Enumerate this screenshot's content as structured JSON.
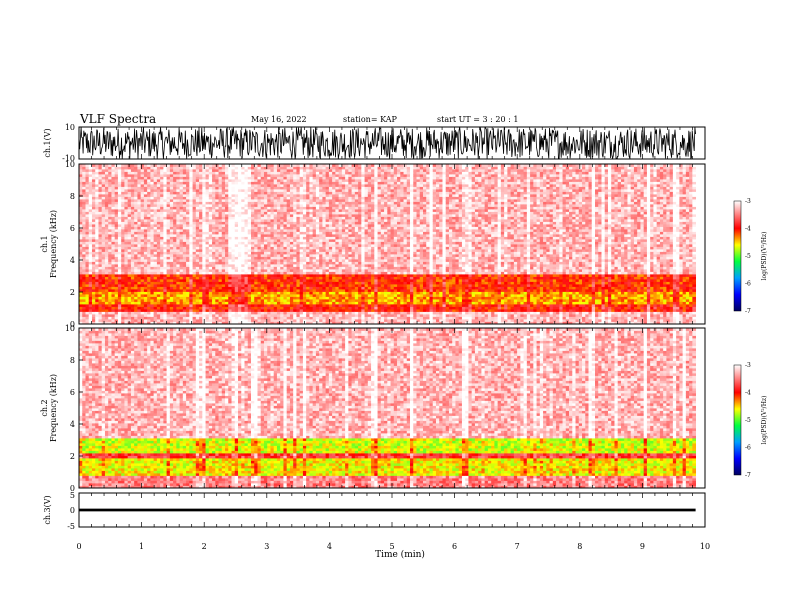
{
  "header": {
    "title": "VLF Spectra",
    "date": "May 16, 2022",
    "station": "station= KAP",
    "start_ut": "start  UT  =   3  : 20 : 1"
  },
  "chart_data": [
    {
      "type": "line",
      "panel": "ch1-waveform",
      "ylabel": "ch.1(V)",
      "ylim": [
        -10,
        10
      ],
      "yticks": [
        "10",
        "-10"
      ],
      "x_range_min": [
        0,
        9.85
      ],
      "description_of_values": "dense noise signal spanning full range",
      "amplitude_range": [
        -10,
        10
      ],
      "color": "#000000"
    },
    {
      "type": "heatmap",
      "panel": "ch1-spectrogram",
      "ylabel_top": "ch.1",
      "ylabel": "Frequency (kHz)",
      "ylim": [
        0,
        10
      ],
      "yticks": [
        "0",
        "2",
        "4",
        "6",
        "8",
        "10"
      ],
      "x_range_min": [
        0,
        9.85
      ],
      "bands_kHz": [
        {
          "from": 0,
          "to": 0.8,
          "level": -3.3
        },
        {
          "from": 0.8,
          "to": 1.2,
          "level": -4.0
        },
        {
          "from": 1.2,
          "to": 2.0,
          "level": -4.4
        },
        {
          "from": 2.0,
          "to": 3.2,
          "level": -4.1
        },
        {
          "from": 3.2,
          "to": 10,
          "level": -3.3
        }
      ],
      "colorbar": {
        "label": "log(PSD)(V²/Hz)",
        "ticks": [
          "-3",
          "-4",
          "-5",
          "-6",
          "-7"
        ],
        "range": [
          -7,
          -3
        ]
      }
    },
    {
      "type": "heatmap",
      "panel": "ch2-spectrogram",
      "ylabel_top": "ch.2",
      "ylabel": "Frequency (kHz)",
      "ylim": [
        0,
        10
      ],
      "yticks": [
        "0",
        "2",
        "4",
        "6",
        "8",
        "10"
      ],
      "x_range_min": [
        0,
        9.85
      ],
      "bands_kHz": [
        {
          "from": 0,
          "to": 0.8,
          "level": -3.5
        },
        {
          "from": 0.8,
          "to": 1.8,
          "level": -4.6
        },
        {
          "from": 1.8,
          "to": 2.2,
          "level": -3.8
        },
        {
          "from": 2.2,
          "to": 3.2,
          "level": -4.7
        },
        {
          "from": 3.2,
          "to": 10,
          "level": -3.3
        }
      ],
      "colorbar": {
        "label": "log(PSD)(V²/Hz)",
        "ticks": [
          "-3",
          "-4",
          "-5",
          "-6",
          "-7"
        ],
        "range": [
          -7,
          -3
        ]
      }
    },
    {
      "type": "line",
      "panel": "ch3-waveform",
      "ylabel": "ch.3(V)",
      "ylim": [
        -5,
        5
      ],
      "yticks": [
        "5",
        "0",
        "-5"
      ],
      "x_range_min": [
        0,
        9.85
      ],
      "amplitude_range": [
        -0.4,
        0.4
      ],
      "color": "#000000"
    }
  ],
  "x_axis": {
    "label": "Time  (min)",
    "ticks": [
      "0",
      "1",
      "2",
      "3",
      "4",
      "5",
      "6",
      "7",
      "8",
      "9",
      "10"
    ],
    "range": [
      0,
      10
    ]
  },
  "colors": {
    "lowest": "#000080",
    "low": "#0000ff",
    "mid_low": "#00c0ff",
    "mid": "#00ff00",
    "mid_high": "#ffff00",
    "high": "#ff0000",
    "highest": "#ffffff"
  }
}
